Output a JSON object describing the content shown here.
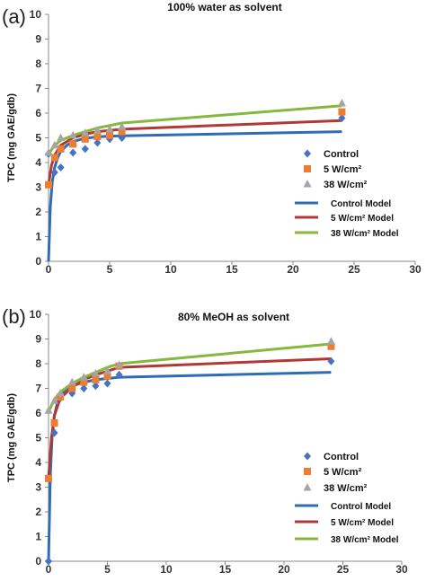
{
  "colors": {
    "control": "#4472C4",
    "w5": "#ED7D31",
    "w38": "#A5A5A5",
    "control_model": "#2E6DB4",
    "w5_model": "#B03A33",
    "w38_model": "#86B83E"
  },
  "chart_data": [
    {
      "type": "scatter",
      "panel_label": "(a)",
      "title": "100% water as solvent",
      "ylabel": "TPC (mg GAE/gdb)",
      "xlabel": "",
      "xlim": [
        0,
        30
      ],
      "ylim": [
        0,
        10
      ],
      "xticks": [
        "0",
        "5",
        "10",
        "15",
        "20",
        "25",
        "30"
      ],
      "yticks": [
        "0",
        "1",
        "2",
        "3",
        "4",
        "5",
        "6",
        "7",
        "8",
        "9",
        "10"
      ],
      "legend_position": "center-right",
      "series": [
        {
          "name": "Control",
          "kind": "points",
          "marker": "diamond",
          "x": [
            0,
            0.5,
            1,
            2,
            3,
            4,
            5,
            6,
            24
          ],
          "y": [
            4.35,
            3.6,
            3.8,
            4.4,
            4.55,
            4.8,
            4.95,
            5.0,
            5.8
          ]
        },
        {
          "name": "5 W/cm²",
          "kind": "points",
          "marker": "square",
          "x": [
            0,
            0.5,
            1,
            2,
            3,
            4,
            5,
            6,
            24
          ],
          "y": [
            3.1,
            4.2,
            4.55,
            4.75,
            4.95,
            5.05,
            5.1,
            5.25,
            6.05
          ]
        },
        {
          "name": "38 W/cm²",
          "kind": "points",
          "marker": "triangle",
          "x": [
            0,
            0.5,
            1,
            2,
            3,
            4,
            5,
            6,
            24
          ],
          "y": [
            4.4,
            4.7,
            5.0,
            5.1,
            5.2,
            5.3,
            5.35,
            5.45,
            6.4
          ]
        },
        {
          "name": "Control Model",
          "kind": "line",
          "x": [
            0,
            0.15,
            0.3,
            0.5,
            0.75,
            1,
            1.5,
            2,
            3,
            4,
            5,
            6,
            24
          ],
          "y": [
            0,
            2.2,
            3.2,
            3.8,
            4.2,
            4.45,
            4.7,
            4.85,
            4.98,
            5.04,
            5.07,
            5.08,
            5.25
          ]
        },
        {
          "name": "5 W/cm² Model",
          "kind": "line",
          "x": [
            0,
            0.25,
            0.5,
            1,
            2,
            3,
            4,
            5,
            6,
            24
          ],
          "y": [
            3.1,
            3.9,
            4.3,
            4.7,
            5.0,
            5.15,
            5.25,
            5.3,
            5.35,
            5.7
          ]
        },
        {
          "name": "38 W/cm² Model",
          "kind": "line",
          "x": [
            0,
            0.5,
            1,
            2,
            3,
            4,
            5,
            6,
            24
          ],
          "y": [
            4.35,
            4.7,
            4.9,
            5.1,
            5.25,
            5.4,
            5.5,
            5.6,
            6.3
          ]
        }
      ]
    },
    {
      "type": "scatter",
      "panel_label": "(b)",
      "title": "80% MeOH as solvent",
      "ylabel": "TPC (mg GAE/gdb)",
      "xlabel": "",
      "xlim": [
        0,
        30
      ],
      "ylim": [
        0,
        10
      ],
      "xticks": [
        "0",
        "5",
        "10",
        "15",
        "20",
        "25",
        "30"
      ],
      "yticks": [
        "0",
        "1",
        "2",
        "3",
        "4",
        "5",
        "6",
        "7",
        "8",
        "9",
        "10"
      ],
      "legend_position": "bottom-right",
      "series": [
        {
          "name": "Control",
          "kind": "points",
          "marker": "diamond",
          "x": [
            0,
            0.5,
            1,
            2,
            3,
            4,
            5,
            6,
            24
          ],
          "y": [
            0,
            5.2,
            6.6,
            6.8,
            7.0,
            7.1,
            7.2,
            7.55,
            8.1
          ]
        },
        {
          "name": "5 W/cm²",
          "kind": "points",
          "marker": "square",
          "x": [
            0,
            0.5,
            1,
            2,
            3,
            4,
            5,
            6,
            24
          ],
          "y": [
            3.35,
            5.6,
            6.65,
            7.0,
            7.25,
            7.35,
            7.5,
            7.9,
            8.7
          ]
        },
        {
          "name": "38 W/cm²",
          "kind": "points",
          "marker": "triangle",
          "x": [
            0,
            0.5,
            1,
            2,
            3,
            4,
            5,
            6,
            24
          ],
          "y": [
            6.1,
            6.5,
            6.8,
            7.25,
            7.45,
            7.6,
            7.7,
            7.95,
            8.9
          ]
        },
        {
          "name": "Control Model",
          "kind": "line",
          "x": [
            0,
            0.15,
            0.3,
            0.5,
            0.75,
            1,
            1.5,
            2,
            3,
            4,
            5,
            6,
            24
          ],
          "y": [
            0,
            3.5,
            5.0,
            5.9,
            6.4,
            6.7,
            6.95,
            7.1,
            7.25,
            7.35,
            7.4,
            7.45,
            7.65
          ]
        },
        {
          "name": "5 W/cm² Model",
          "kind": "line",
          "x": [
            0,
            0.25,
            0.5,
            1,
            2,
            3,
            4,
            5,
            6,
            24
          ],
          "y": [
            3.35,
            5.0,
            5.9,
            6.6,
            7.05,
            7.35,
            7.55,
            7.7,
            7.85,
            8.2
          ]
        },
        {
          "name": "38 W/cm² Model",
          "kind": "line",
          "x": [
            0,
            0.5,
            1,
            2,
            3,
            4,
            5,
            6,
            24
          ],
          "y": [
            6.05,
            6.55,
            6.85,
            7.2,
            7.45,
            7.65,
            7.85,
            8.0,
            8.8
          ]
        }
      ]
    }
  ]
}
